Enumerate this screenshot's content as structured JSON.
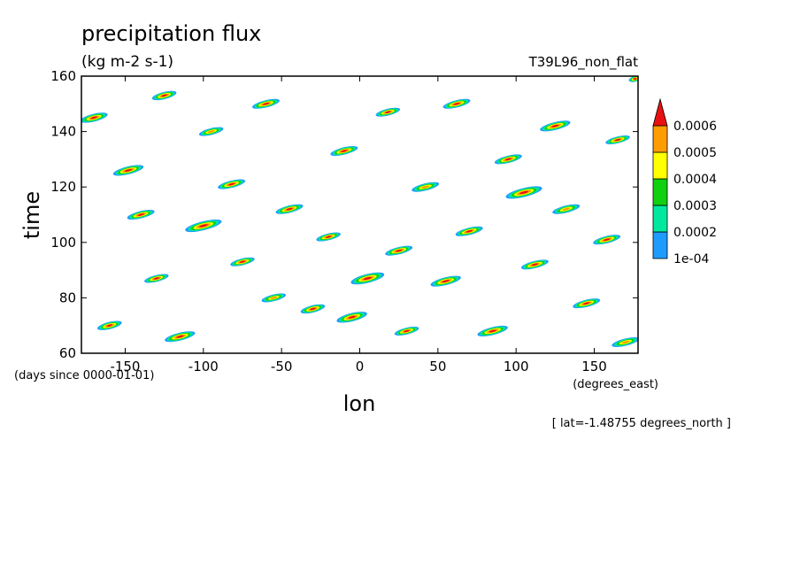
{
  "chart_data": {
    "type": "heatmap",
    "title": "precipitation flux",
    "subtitle": "(kg m-2 s-1)",
    "run_label": "T39L96_non_flat",
    "xlabel": "lon",
    "ylabel": "time",
    "x_units": "(degrees_east)",
    "y_units": "(days since 0000-01-01)",
    "note": "[ lat=-1.48755 degrees_north ]",
    "xlim": [
      -178,
      178
    ],
    "ylim": [
      60,
      160
    ],
    "x_ticks": [
      -150,
      -100,
      -50,
      0,
      50,
      100,
      150
    ],
    "x_tick_labels": [
      "-150",
      "-100",
      "-50",
      "0",
      "50",
      "100",
      "150"
    ],
    "y_ticks": [
      60,
      80,
      100,
      120,
      140,
      160
    ],
    "y_tick_labels": [
      "60",
      "80",
      "100",
      "120",
      "140",
      "160"
    ],
    "colorbar": {
      "levels": [
        0.0001,
        0.0002,
        0.0003,
        0.0004,
        0.0005,
        0.0006
      ],
      "level_labels": [
        "1e-04",
        "0.0002",
        "0.0003",
        "0.0004",
        "0.0005",
        "0.0006"
      ],
      "colors": [
        "#1e9bff",
        "#00e8a0",
        "#10d010",
        "#ffff00",
        "#ff9c00",
        "#e81010"
      ],
      "extend": "max"
    },
    "grid": false,
    "features": [
      {
        "lon": -170,
        "time": 145,
        "w": 9,
        "h": 1.4,
        "level": 5
      },
      {
        "lon": -160,
        "time": 70,
        "w": 8,
        "h": 1.3,
        "level": 5
      },
      {
        "lon": -148,
        "time": 126,
        "w": 10,
        "h": 1.4,
        "level": 5
      },
      {
        "lon": -140,
        "time": 110,
        "w": 9,
        "h": 1.3,
        "level": 5
      },
      {
        "lon": -130,
        "time": 87,
        "w": 8,
        "h": 1.2,
        "level": 5
      },
      {
        "lon": -125,
        "time": 153,
        "w": 8,
        "h": 1.3,
        "level": 5
      },
      {
        "lon": -115,
        "time": 66,
        "w": 10,
        "h": 1.4,
        "level": 5
      },
      {
        "lon": -100,
        "time": 106,
        "w": 12,
        "h": 1.6,
        "level": 5
      },
      {
        "lon": -95,
        "time": 140,
        "w": 8,
        "h": 1.2,
        "level": 4
      },
      {
        "lon": -82,
        "time": 121,
        "w": 9,
        "h": 1.3,
        "level": 5
      },
      {
        "lon": -75,
        "time": 93,
        "w": 8,
        "h": 1.2,
        "level": 5
      },
      {
        "lon": -60,
        "time": 150,
        "w": 9,
        "h": 1.3,
        "level": 5
      },
      {
        "lon": -55,
        "time": 80,
        "w": 8,
        "h": 1.2,
        "level": 4
      },
      {
        "lon": -45,
        "time": 112,
        "w": 9,
        "h": 1.3,
        "level": 5
      },
      {
        "lon": -30,
        "time": 76,
        "w": 8,
        "h": 1.3,
        "level": 5
      },
      {
        "lon": -20,
        "time": 102,
        "w": 8,
        "h": 1.2,
        "level": 5
      },
      {
        "lon": -10,
        "time": 133,
        "w": 9,
        "h": 1.3,
        "level": 5
      },
      {
        "lon": -5,
        "time": 73,
        "w": 10,
        "h": 1.5,
        "level": 5
      },
      {
        "lon": 5,
        "time": 87,
        "w": 11,
        "h": 1.6,
        "level": 5
      },
      {
        "lon": 18,
        "time": 147,
        "w": 8,
        "h": 1.2,
        "level": 5
      },
      {
        "lon": 25,
        "time": 97,
        "w": 9,
        "h": 1.3,
        "level": 5
      },
      {
        "lon": 30,
        "time": 68,
        "w": 8,
        "h": 1.2,
        "level": 5
      },
      {
        "lon": 42,
        "time": 120,
        "w": 9,
        "h": 1.3,
        "level": 4
      },
      {
        "lon": 55,
        "time": 86,
        "w": 10,
        "h": 1.4,
        "level": 5
      },
      {
        "lon": 62,
        "time": 150,
        "w": 9,
        "h": 1.3,
        "level": 5
      },
      {
        "lon": 70,
        "time": 104,
        "w": 9,
        "h": 1.3,
        "level": 5
      },
      {
        "lon": 85,
        "time": 68,
        "w": 10,
        "h": 1.4,
        "level": 5
      },
      {
        "lon": 95,
        "time": 130,
        "w": 9,
        "h": 1.3,
        "level": 5
      },
      {
        "lon": 105,
        "time": 118,
        "w": 12,
        "h": 1.6,
        "level": 5
      },
      {
        "lon": 112,
        "time": 92,
        "w": 9,
        "h": 1.3,
        "level": 5
      },
      {
        "lon": 125,
        "time": 142,
        "w": 10,
        "h": 1.4,
        "level": 5
      },
      {
        "lon": 132,
        "time": 112,
        "w": 9,
        "h": 1.3,
        "level": 4
      },
      {
        "lon": 145,
        "time": 78,
        "w": 9,
        "h": 1.3,
        "level": 5
      },
      {
        "lon": 158,
        "time": 101,
        "w": 9,
        "h": 1.3,
        "level": 5
      },
      {
        "lon": 165,
        "time": 137,
        "w": 8,
        "h": 1.2,
        "level": 5
      },
      {
        "lon": 170,
        "time": 64,
        "w": 9,
        "h": 1.3,
        "level": 4
      },
      {
        "lon": 176,
        "time": 159,
        "w": 4,
        "h": 1.0,
        "level": 5
      }
    ]
  }
}
